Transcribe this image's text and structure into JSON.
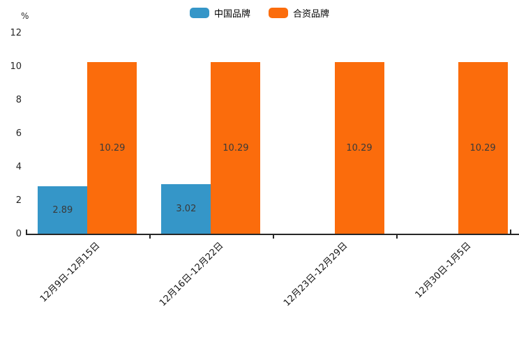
{
  "chart_data": {
    "type": "bar",
    "title": "",
    "ylabel": "%",
    "xlabel": "",
    "categories": [
      "12月9日-12月15日",
      "12月16日-12月22日",
      "12月23日-12月29日",
      "12月30日-1月5日"
    ],
    "series": [
      {
        "name": "中国品牌",
        "color": "#3596c8",
        "values": [
          2.89,
          3.02,
          null,
          null
        ]
      },
      {
        "name": "合资品牌",
        "color": "#fb6c0c",
        "values": [
          10.29,
          10.29,
          10.29,
          10.29
        ]
      }
    ],
    "ylim": [
      0,
      12
    ],
    "yticks": [
      0,
      2,
      4,
      6,
      8,
      10,
      12
    ],
    "grid": false,
    "legend_position": "top-center",
    "bar_labels_visible": true,
    "axis_color": "#262626",
    "background_color": "#ffffff"
  }
}
